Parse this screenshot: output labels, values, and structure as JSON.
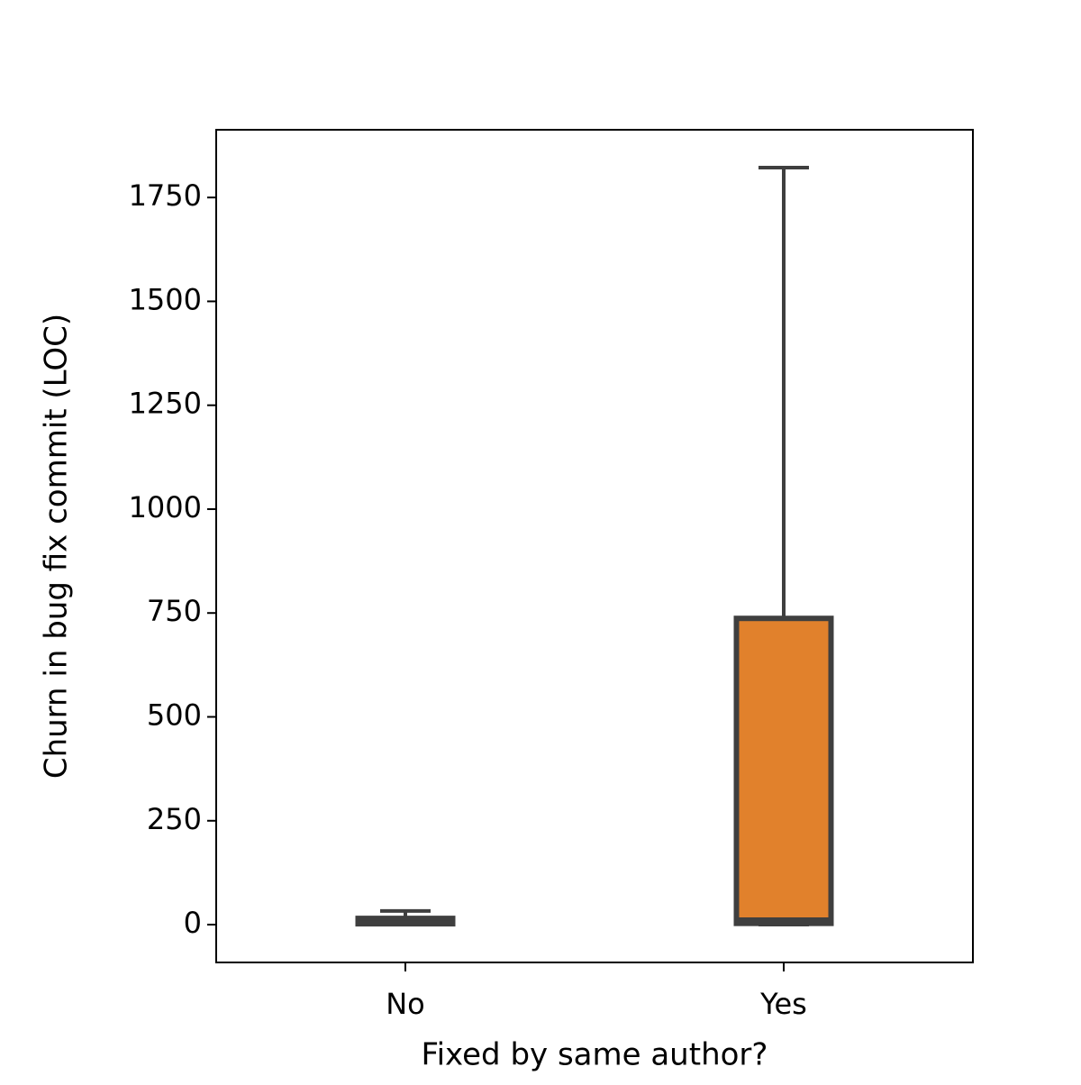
{
  "chart_data": {
    "type": "box",
    "x_label": "Fixed by same author?",
    "y_label": "Churn in bug fix commit (LOC)",
    "categories": [
      "No",
      "Yes"
    ],
    "colors": [
      "#3274a1",
      "#e1812c"
    ],
    "edge_color": "#3f3f3f",
    "whislo": [
      0,
      0
    ],
    "q1": [
      2,
      3
    ],
    "median": [
      6,
      13
    ],
    "q3": [
      15,
      737
    ],
    "whishi": [
      33,
      1822
    ],
    "ylim": [
      -91,
      1913
    ],
    "yticks": [
      0,
      250,
      500,
      750,
      1000,
      1250,
      1500,
      1750
    ]
  }
}
